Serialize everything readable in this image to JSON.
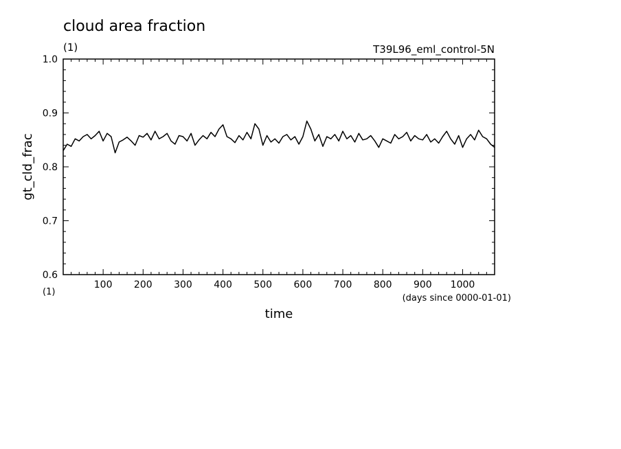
{
  "chart_data": {
    "type": "line",
    "title": "cloud area fraction",
    "title_unit": "(1)",
    "experiment": "T39L96_eml_control-5N",
    "ylabel": "gt_cld_frac",
    "y_unit": "(1)",
    "xlabel": "time",
    "x_unit": "(days since 0000-01-01)",
    "xlim": [
      0,
      1080
    ],
    "ylim": [
      0.6,
      1.0
    ],
    "x_ticks": [
      100,
      200,
      300,
      400,
      500,
      600,
      700,
      800,
      900,
      1000
    ],
    "y_ticks": [
      "0.6",
      "0.7",
      "0.8",
      "0.9",
      "1.0"
    ],
    "grid": false,
    "color": "#000000",
    "series": [
      {
        "x": [
          0,
          10,
          20,
          30,
          40,
          50,
          60,
          70,
          80,
          90,
          100,
          110,
          120,
          130,
          140,
          150,
          160,
          170,
          180,
          190,
          200,
          210,
          220,
          230,
          240,
          250,
          260,
          270,
          280,
          290,
          300,
          310,
          320,
          330,
          340,
          350,
          360,
          370,
          380,
          390,
          400,
          410,
          420,
          430,
          440,
          450,
          460,
          470,
          480,
          490,
          500,
          510,
          520,
          530,
          540,
          550,
          560,
          570,
          580,
          590,
          600,
          610,
          620,
          630,
          640,
          650,
          660,
          670,
          680,
          690,
          700,
          710,
          720,
          730,
          740,
          750,
          760,
          770,
          780,
          790,
          800,
          810,
          820,
          830,
          840,
          850,
          860,
          870,
          880,
          890,
          900,
          910,
          920,
          930,
          940,
          950,
          960,
          970,
          980,
          990,
          1000,
          1010,
          1020,
          1030,
          1040,
          1050,
          1060,
          1070,
          1080
        ],
        "y": [
          0.83,
          0.842,
          0.838,
          0.852,
          0.848,
          0.856,
          0.86,
          0.852,
          0.858,
          0.866,
          0.848,
          0.862,
          0.856,
          0.826,
          0.846,
          0.85,
          0.855,
          0.848,
          0.84,
          0.858,
          0.855,
          0.862,
          0.85,
          0.866,
          0.852,
          0.856,
          0.862,
          0.848,
          0.842,
          0.858,
          0.856,
          0.848,
          0.862,
          0.84,
          0.85,
          0.858,
          0.852,
          0.864,
          0.856,
          0.87,
          0.878,
          0.856,
          0.852,
          0.845,
          0.858,
          0.85,
          0.864,
          0.852,
          0.88,
          0.87,
          0.84,
          0.858,
          0.846,
          0.852,
          0.844,
          0.856,
          0.86,
          0.85,
          0.856,
          0.842,
          0.856,
          0.885,
          0.87,
          0.848,
          0.86,
          0.838,
          0.856,
          0.852,
          0.86,
          0.848,
          0.866,
          0.852,
          0.858,
          0.846,
          0.862,
          0.85,
          0.852,
          0.858,
          0.848,
          0.836,
          0.852,
          0.848,
          0.844,
          0.86,
          0.852,
          0.856,
          0.864,
          0.848,
          0.858,
          0.852,
          0.85,
          0.86,
          0.846,
          0.852,
          0.844,
          0.856,
          0.866,
          0.852,
          0.842,
          0.858,
          0.836,
          0.852,
          0.86,
          0.85,
          0.868,
          0.856,
          0.852,
          0.842,
          0.836
        ]
      }
    ]
  }
}
